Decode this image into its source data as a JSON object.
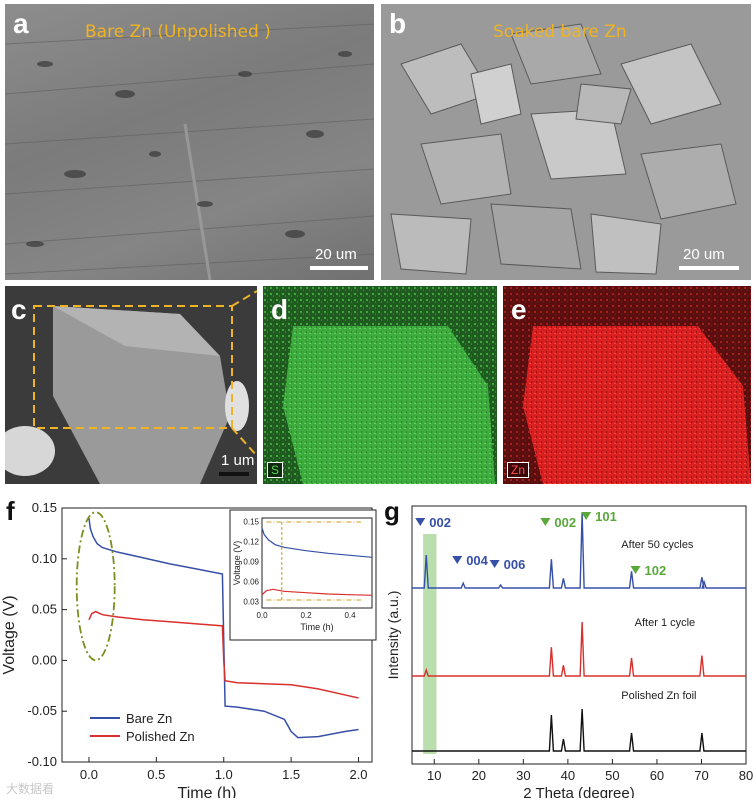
{
  "panels": {
    "a": {
      "letter": "a",
      "caption": "Bare Zn (Unpolished )",
      "scale": "20 um"
    },
    "b": {
      "letter": "b",
      "caption": "Soaked bare Zn",
      "scale": "20 um"
    },
    "c": {
      "letter": "c",
      "scale": "1 um"
    },
    "d": {
      "letter": "d",
      "element": "S"
    },
    "e": {
      "letter": "e",
      "element": "Zn"
    },
    "f": {
      "letter": "f"
    },
    "g": {
      "letter": "g"
    }
  },
  "colors": {
    "blue": "#3650a8",
    "red": "#d8302d",
    "green": "#52b83a",
    "orange": "#f0b323",
    "peak_green": "#5aa83a"
  },
  "chart_data": [
    {
      "type": "line",
      "xlabel": "Time (h)",
      "ylabel": "Voltage (V)",
      "xlim": [
        -0.2,
        2.1
      ],
      "ylim": [
        -0.1,
        0.15
      ],
      "x_ticks": [
        "0.0",
        "0.5",
        "1.0",
        "1.5",
        "2.0"
      ],
      "y_ticks": [
        "-0.10",
        "-0.05",
        "0.00",
        "0.05",
        "0.10",
        "0.15"
      ],
      "legend": [
        "Bare  Zn",
        "Polished Zn"
      ],
      "series": [
        {
          "name": "Bare  Zn",
          "x": [
            0,
            0.01,
            0.03,
            0.06,
            0.1,
            0.2,
            0.4,
            0.6,
            0.8,
            0.99,
            1.0,
            1.01,
            1.1,
            1.3,
            1.45,
            1.5,
            1.55,
            1.7,
            1.9,
            2.0
          ],
          "y": [
            0.14,
            0.13,
            0.122,
            0.115,
            0.111,
            0.107,
            0.101,
            0.095,
            0.09,
            0.085,
            0.02,
            -0.045,
            -0.046,
            -0.05,
            -0.058,
            -0.07,
            -0.076,
            -0.075,
            -0.07,
            -0.068
          ]
        },
        {
          "name": "Polished Zn",
          "x": [
            0,
            0.02,
            0.05,
            0.1,
            0.2,
            0.4,
            0.6,
            0.8,
            0.99,
            1.0,
            1.01,
            1.1,
            1.3,
            1.5,
            1.7,
            1.9,
            2.0
          ],
          "y": [
            0.04,
            0.046,
            0.048,
            0.045,
            0.043,
            0.04,
            0.038,
            0.036,
            0.034,
            0.0,
            -0.02,
            -0.022,
            -0.023,
            -0.024,
            -0.028,
            -0.034,
            -0.037
          ]
        }
      ],
      "inset": {
        "xlabel": "Time (h)",
        "ylabel": "Voltage (V)",
        "xlim": [
          0,
          0.5
        ],
        "ylim": [
          0.02,
          0.155
        ],
        "x_ticks": [
          "0.0",
          "0.2",
          "0.4"
        ],
        "y_ticks": [
          "0.03",
          "0.06",
          "0.09",
          "0.12",
          "0.15"
        ],
        "series": [
          {
            "name": "Bare  Zn",
            "x": [
              0,
              0.01,
              0.03,
              0.06,
              0.1,
              0.2,
              0.3,
              0.4,
              0.5
            ],
            "y": [
              0.14,
              0.13,
              0.122,
              0.115,
              0.111,
              0.106,
              0.102,
              0.099,
              0.096
            ]
          },
          {
            "name": "Polished Zn",
            "x": [
              0,
              0.02,
              0.05,
              0.1,
              0.2,
              0.3,
              0.4,
              0.5
            ],
            "y": [
              0.04,
              0.046,
              0.048,
              0.045,
              0.043,
              0.041,
              0.04,
              0.039
            ]
          }
        ]
      }
    },
    {
      "type": "line",
      "xlabel": "2 Theta (degree)",
      "ylabel": "Intensity (a.u.)",
      "xlim": [
        5,
        80
      ],
      "x_ticks": [
        "10",
        "20",
        "30",
        "40",
        "50",
        "60",
        "70",
        "80"
      ],
      "series": [
        {
          "name": "After 50 cycles",
          "peaks": [
            [
              8.2,
              55
            ],
            [
              16.5,
              8
            ],
            [
              24.9,
              5
            ],
            [
              36.3,
              48
            ],
            [
              39.0,
              16
            ],
            [
              43.2,
              125
            ],
            [
              54.3,
              28
            ],
            [
              70.1,
              18
            ],
            [
              70.6,
              10
            ]
          ]
        },
        {
          "name": "After 1 cycle",
          "peaks": [
            [
              8.2,
              10
            ],
            [
              36.3,
              48
            ],
            [
              39.0,
              18
            ],
            [
              43.2,
              90
            ],
            [
              54.3,
              30
            ],
            [
              70.1,
              34
            ]
          ]
        },
        {
          "name": "Polished Zn foil",
          "peaks": [
            [
              36.3,
              60
            ],
            [
              39.0,
              20
            ],
            [
              43.2,
              70
            ],
            [
              54.3,
              30
            ],
            [
              70.1,
              30
            ]
          ]
        }
      ],
      "annotations": [
        {
          "text": "002",
          "x": 8.2,
          "color": "blue"
        },
        {
          "text": "004",
          "x": 16.5,
          "color": "blue"
        },
        {
          "text": "006",
          "x": 24.9,
          "color": "blue"
        },
        {
          "text": "002",
          "x": 36.3,
          "color": "green"
        },
        {
          "text": "101",
          "x": 43.2,
          "color": "green"
        },
        {
          "text": "102",
          "x": 54.3,
          "color": "green"
        }
      ],
      "highlight_range": [
        7.5,
        10.5
      ]
    }
  ],
  "watermark": "大数据看"
}
